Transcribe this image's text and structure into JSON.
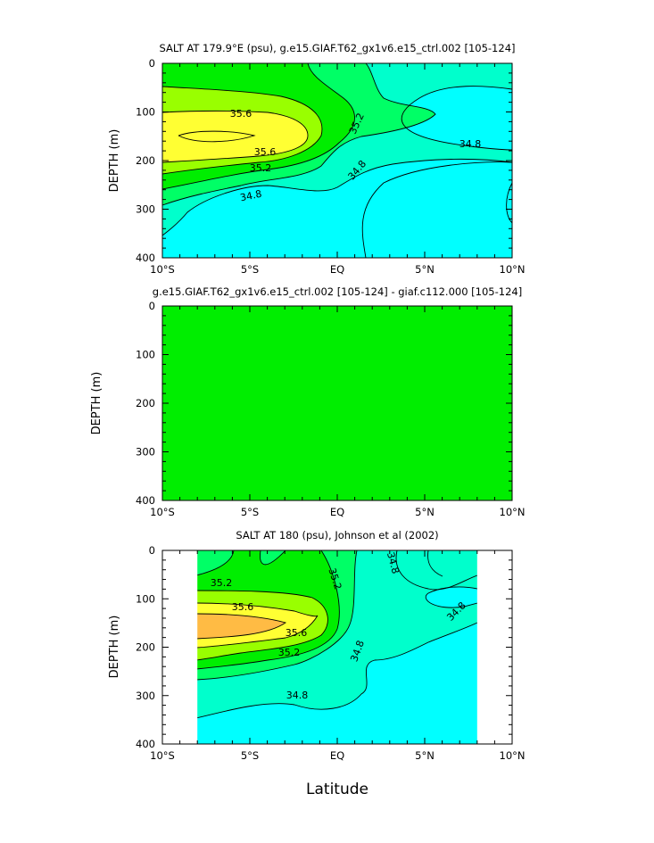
{
  "colors": {
    "cyan": "#00ffff",
    "teal": "#00ffcc",
    "green_light": "#00ff66",
    "green": "#00ee00",
    "yellow_green": "#99ff00",
    "yellow": "#ffff33",
    "orange": "#ffbb44",
    "white": "#ffffff"
  },
  "x_axis_label": "Latitude",
  "chart_data": [
    {
      "type": "heatmap",
      "subtype": "filled-contour",
      "title": "SALT AT 179.9°E (psu), g.e15.GIAF.T62_gx1v6.e15_ctrl.002 [105-124]",
      "ylabel": "DEPTH (m)",
      "xlabel": "",
      "x_ticks": [
        "10°S",
        "5°S",
        "EQ",
        "5°N",
        "10°N"
      ],
      "y_ticks": [
        "0",
        "100",
        "200",
        "300",
        "400"
      ],
      "xlim": [
        -10,
        10
      ],
      "ylim": [
        400,
        0
      ],
      "contour_labels": [
        "35.6",
        "35.6",
        "35.2",
        "35.2",
        "34.8",
        "34.8",
        "34.8"
      ],
      "levels": [
        34.8,
        35.0,
        35.2,
        35.4,
        35.6,
        35.8
      ],
      "grid": false
    },
    {
      "type": "heatmap",
      "subtype": "filled-contour",
      "title": "g.e15.GIAF.T62_gx1v6.e15_ctrl.002 [105-124] - giaf.c112.000 [105-124]",
      "ylabel": "DEPTH (m)",
      "xlabel": "",
      "x_ticks": [
        "10°S",
        "5°S",
        "EQ",
        "5°N",
        "10°N"
      ],
      "y_ticks": [
        "0",
        "100",
        "200",
        "300",
        "400"
      ],
      "xlim": [
        -10,
        10
      ],
      "ylim": [
        400,
        0
      ],
      "uniform_value": 0,
      "grid": false
    },
    {
      "type": "heatmap",
      "subtype": "filled-contour",
      "title": "SALT AT 180 (psu), Johnson et al (2002)",
      "ylabel": "DEPTH (m)",
      "xlabel": "Latitude",
      "x_ticks": [
        "10°S",
        "5°S",
        "EQ",
        "5°N",
        "10°N"
      ],
      "y_ticks": [
        "0",
        "100",
        "200",
        "300",
        "400"
      ],
      "xlim": [
        -10,
        10
      ],
      "ylim": [
        400,
        0
      ],
      "data_extent_lat": [
        -8,
        8
      ],
      "contour_labels": [
        "35.2",
        "35.6",
        "35.6",
        "35.2",
        "35.2",
        "34.8",
        "34.8",
        "34.8",
        "34.8"
      ],
      "levels": [
        34.8,
        35.0,
        35.2,
        35.4,
        35.6,
        35.8
      ],
      "grid": false
    }
  ]
}
